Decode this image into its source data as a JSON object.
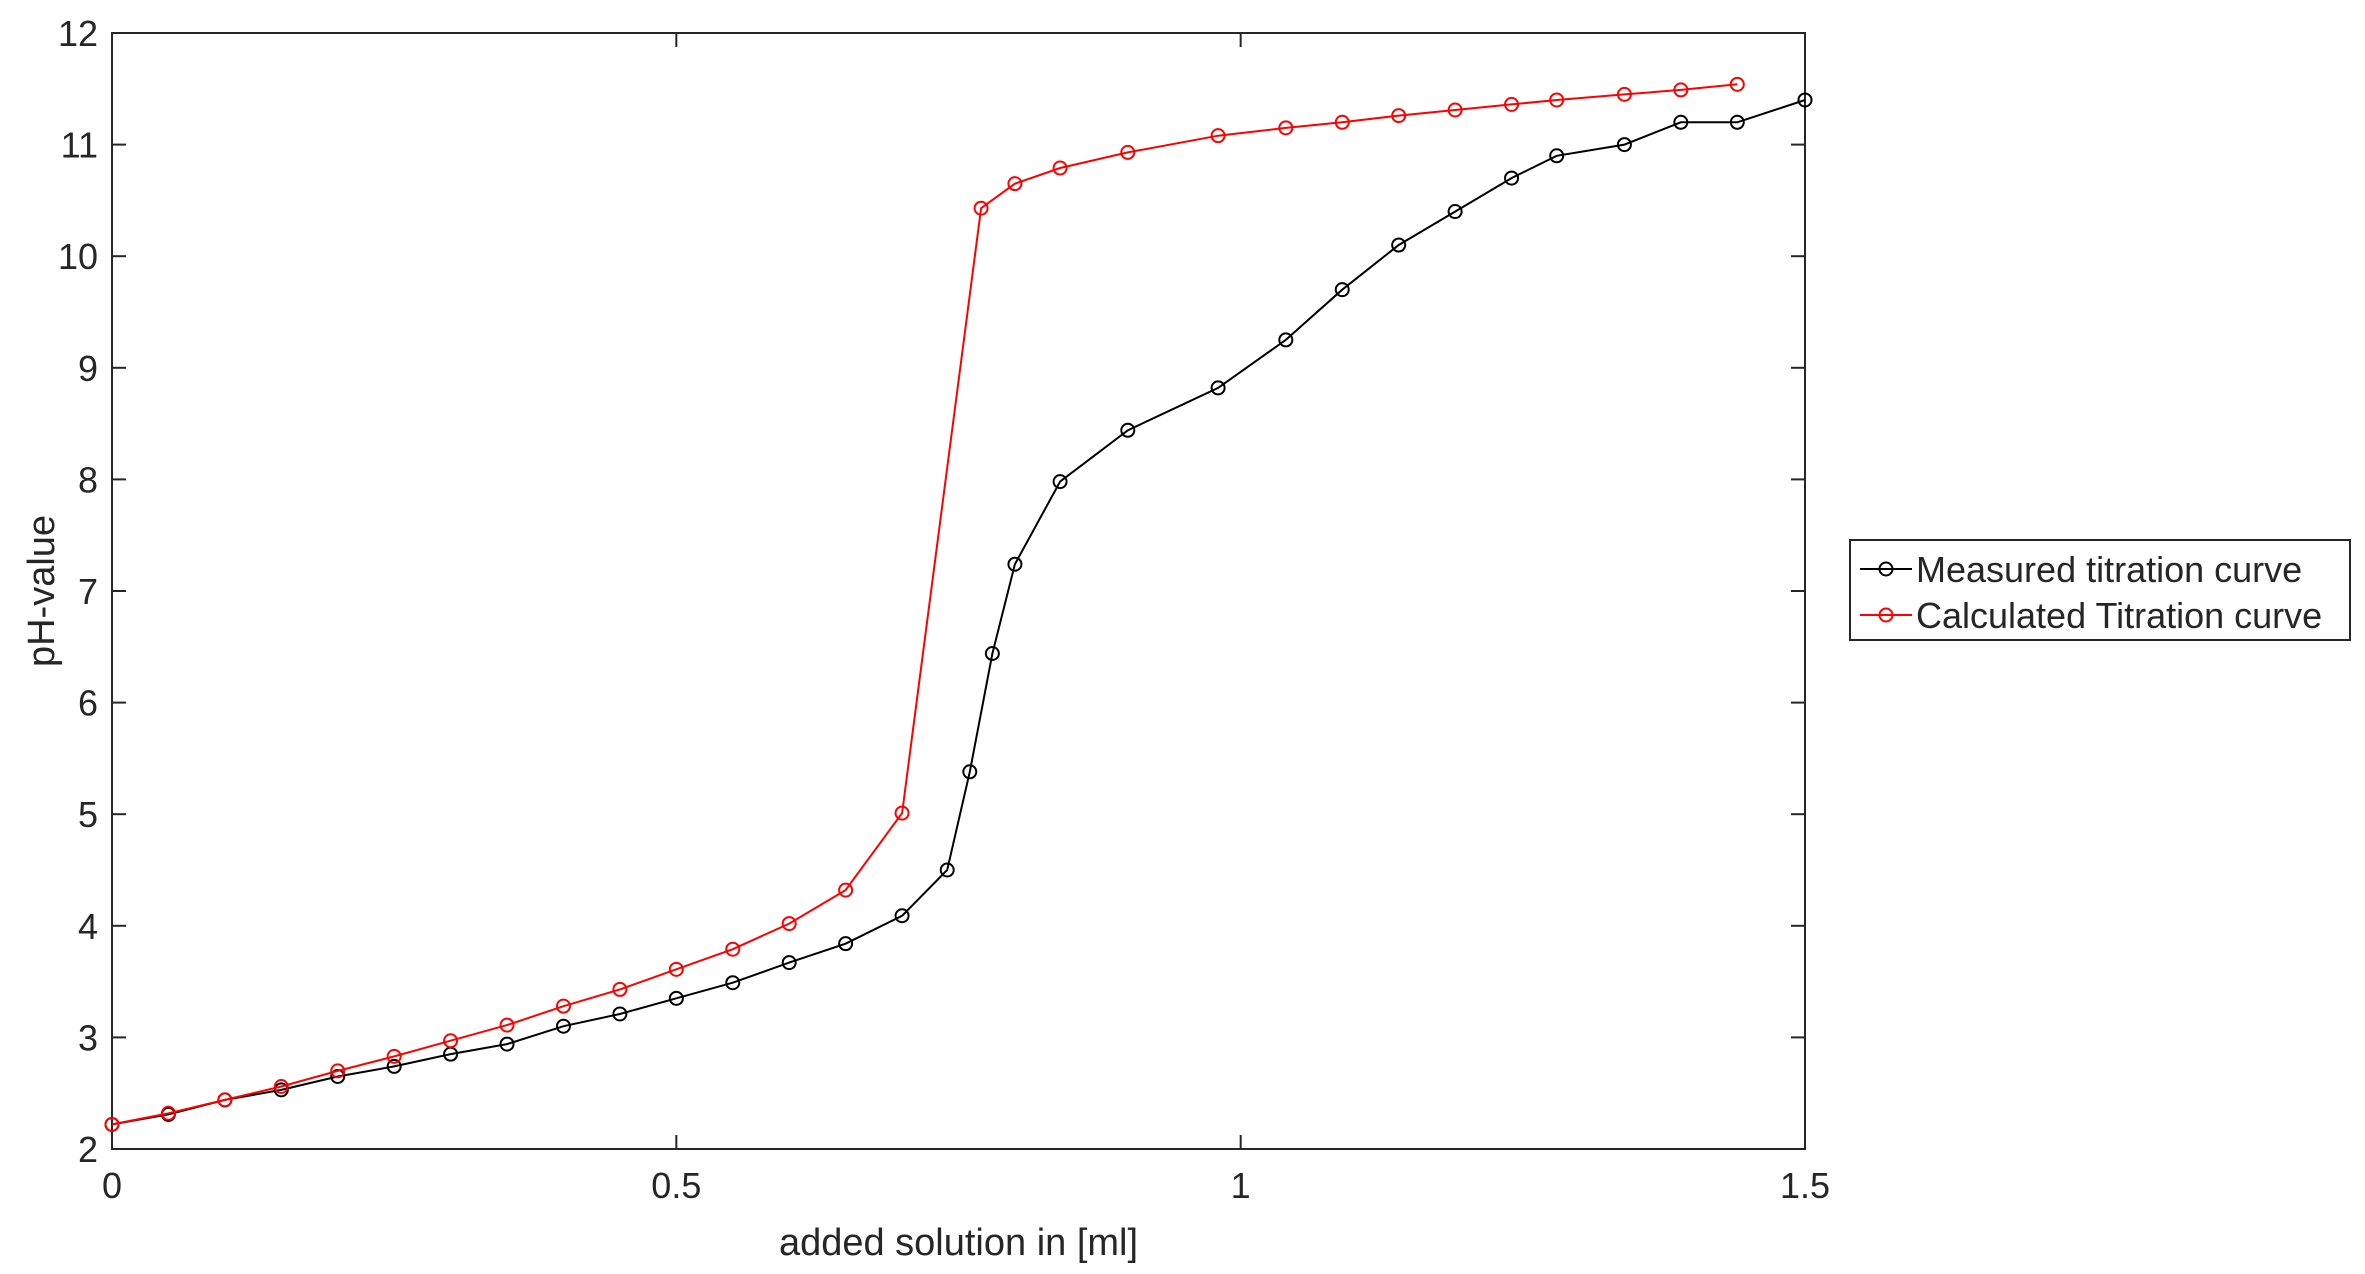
{
  "chart_data": {
    "type": "line",
    "title": "",
    "xlabel": "added solution in [ml]",
    "ylabel": "pH-value",
    "xlim": [
      0,
      1.5
    ],
    "ylim": [
      2,
      12
    ],
    "xticks": [
      0,
      0.5,
      1,
      1.5
    ],
    "xtick_labels": [
      "0",
      "0.5",
      "1",
      "1.5"
    ],
    "yticks": [
      2,
      3,
      4,
      5,
      6,
      7,
      8,
      9,
      10,
      11,
      12
    ],
    "ytick_labels": [
      "2",
      "3",
      "4",
      "5",
      "6",
      "7",
      "8",
      "9",
      "10",
      "11",
      "12"
    ],
    "grid": false,
    "legend_position": "outside-right",
    "series": [
      {
        "name": "Measured titration curve",
        "color": "#000000",
        "marker": "circle",
        "x": [
          0,
          0.05,
          0.1,
          0.15,
          0.2,
          0.25,
          0.3,
          0.35,
          0.4,
          0.45,
          0.5,
          0.55,
          0.6,
          0.65,
          0.7,
          0.74,
          0.76,
          0.78,
          0.8,
          0.84,
          0.9,
          0.98,
          1.04,
          1.09,
          1.14,
          1.19,
          1.24,
          1.28,
          1.34,
          1.39,
          1.44,
          1.5
        ],
        "y": [
          2.22,
          2.31,
          2.44,
          2.53,
          2.65,
          2.74,
          2.85,
          2.94,
          3.1,
          3.21,
          3.35,
          3.49,
          3.67,
          3.84,
          4.09,
          4.5,
          5.38,
          6.44,
          7.24,
          7.98,
          8.44,
          8.82,
          9.25,
          9.7,
          10.1,
          10.4,
          10.7,
          10.9,
          11.0,
          11.2,
          11.2,
          11.4
        ]
      },
      {
        "name": "Calculated Titration curve",
        "color": "#ff0000",
        "marker": "circle",
        "x": [
          0,
          0.05,
          0.1,
          0.15,
          0.2,
          0.25,
          0.3,
          0.35,
          0.4,
          0.45,
          0.5,
          0.55,
          0.6,
          0.65,
          0.7,
          0.77,
          0.8,
          0.84,
          0.9,
          0.98,
          1.04,
          1.09,
          1.14,
          1.19,
          1.24,
          1.28,
          1.34,
          1.39,
          1.44
        ],
        "y": [
          2.22,
          2.32,
          2.44,
          2.56,
          2.7,
          2.83,
          2.97,
          3.11,
          3.28,
          3.43,
          3.61,
          3.79,
          4.02,
          4.32,
          5.01,
          10.43,
          10.65,
          10.79,
          10.93,
          11.08,
          11.15,
          11.2,
          11.26,
          11.31,
          11.36,
          11.4,
          11.45,
          11.49,
          11.54
        ]
      }
    ]
  }
}
